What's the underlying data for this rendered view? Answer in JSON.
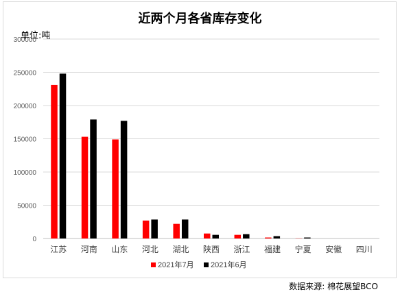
{
  "unit_label": "单位:吨",
  "source": "数据来源: 棉花展望BCO",
  "chart_data": {
    "type": "bar",
    "title": "近两个月各省库存变化",
    "categories": [
      "江苏",
      "河南",
      "山东",
      "河北",
      "湖北",
      "陕西",
      "浙江",
      "福建",
      "宁夏",
      "安徽",
      "四川"
    ],
    "series": [
      {
        "name": "2021年7月",
        "color": "#ff0000",
        "values": [
          231000,
          153000,
          149000,
          27000,
          22000,
          7500,
          5500,
          1500,
          300,
          0,
          0
        ]
      },
      {
        "name": "2021年6月",
        "color": "#000000",
        "values": [
          248000,
          179000,
          177000,
          28500,
          28500,
          5500,
          6500,
          3500,
          1500,
          0,
          0
        ]
      }
    ],
    "ylim": [
      0,
      300000
    ],
    "yticks": [
      0,
      50000,
      100000,
      150000,
      200000,
      250000,
      300000
    ],
    "grid": true,
    "legend": "bottom"
  }
}
